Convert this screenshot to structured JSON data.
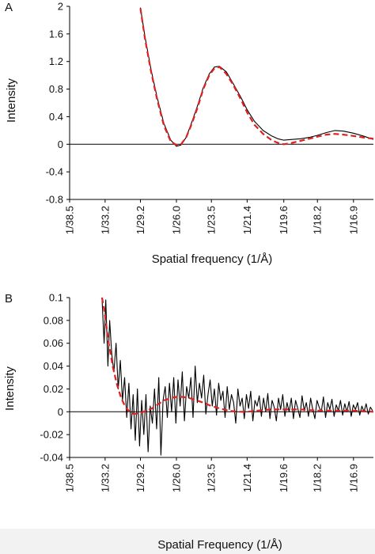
{
  "colors": {
    "measured": "#000000",
    "model": "#e02020",
    "axis": "#000000",
    "footer_bg": "#f2f2f2"
  },
  "chart_data": [
    {
      "panel": "A",
      "type": "line",
      "xlabel": "Spatial frequency (1/Å)",
      "ylabel": "Intensity",
      "x_tick_labels": [
        "1/38.5",
        "1/33.2",
        "1/29.2",
        "1/26.0",
        "1/23.5",
        "1/21.4",
        "1/19.6",
        "1/18.2",
        "1/16.9"
      ],
      "x_tick_values": [
        0.02597,
        0.03012,
        0.03425,
        0.03846,
        0.04255,
        0.04673,
        0.05102,
        0.05495,
        0.05917
      ],
      "xlim": [
        0.02597,
        0.0615
      ],
      "y_tick_labels": [
        "2",
        "1.6",
        "1.2",
        "0.8",
        "0.4",
        "0",
        "-0.4",
        "-0.8"
      ],
      "ylim": [
        -0.8,
        2
      ],
      "zero_line": true,
      "grid": false,
      "legend": "none",
      "series": [
        {
          "style": "solid-black",
          "x": [
            0.03425,
            0.0348,
            0.0355,
            0.0362,
            0.037,
            0.0378,
            0.03846,
            0.039,
            0.0396,
            0.0402,
            0.0409,
            0.0416,
            0.0423,
            0.0429,
            0.0435,
            0.0443,
            0.0451,
            0.046,
            0.04673,
            0.0476,
            0.0486,
            0.0496,
            0.0503,
            0.05102,
            0.052,
            0.053,
            0.054,
            0.05495,
            0.056,
            0.057,
            0.058,
            0.05917,
            0.0603,
            0.0615
          ],
          "y": [
            1.98,
            1.55,
            1.08,
            0.68,
            0.3,
            0.06,
            -0.03,
            -0.01,
            0.1,
            0.3,
            0.55,
            0.82,
            1.02,
            1.12,
            1.13,
            1.05,
            0.88,
            0.68,
            0.5,
            0.33,
            0.2,
            0.12,
            0.08,
            0.06,
            0.07,
            0.08,
            0.1,
            0.13,
            0.17,
            0.2,
            0.19,
            0.16,
            0.12,
            0.07
          ]
        },
        {
          "style": "dashed-red",
          "x": [
            0.03425,
            0.0348,
            0.0355,
            0.0362,
            0.037,
            0.0378,
            0.03846,
            0.039,
            0.0396,
            0.0402,
            0.0409,
            0.0416,
            0.0423,
            0.0429,
            0.0435,
            0.0443,
            0.0451,
            0.046,
            0.04673,
            0.0476,
            0.0486,
            0.0496,
            0.0503,
            0.05102,
            0.052,
            0.053,
            0.054,
            0.05495,
            0.056,
            0.057,
            0.058,
            0.05917,
            0.0603,
            0.0615
          ],
          "y": [
            1.97,
            1.52,
            1.05,
            0.65,
            0.27,
            0.04,
            -0.01,
            0.0,
            0.1,
            0.28,
            0.52,
            0.8,
            1.0,
            1.1,
            1.12,
            1.02,
            0.86,
            0.65,
            0.46,
            0.28,
            0.15,
            0.06,
            0.02,
            0.0,
            0.02,
            0.05,
            0.08,
            0.11,
            0.14,
            0.15,
            0.14,
            0.12,
            0.1,
            0.08
          ]
        }
      ]
    },
    {
      "panel": "B",
      "type": "line",
      "xlabel": "Spatial Frequency (1/Å)",
      "ylabel": "Intensity",
      "x_tick_labels": [
        "1/38.5",
        "1/33.2",
        "1/29.2",
        "1/26.0",
        "1/23.5",
        "1/21.4",
        "1/19.6",
        "1/18.2",
        "1/16.9"
      ],
      "x_tick_values": [
        0.02597,
        0.03012,
        0.03425,
        0.03846,
        0.04255,
        0.04673,
        0.05102,
        0.05495,
        0.05917
      ],
      "xlim": [
        0.02597,
        0.0615
      ],
      "y_tick_labels": [
        "0.1",
        "0.08",
        "0.06",
        "0.04",
        "0.02",
        "0",
        "-0.02",
        "-0.04"
      ],
      "ylim": [
        -0.04,
        0.1
      ],
      "zero_line": true,
      "grid": false,
      "legend": "none",
      "series": [
        {
          "style": "solid-black",
          "x": [
            0.02975,
            0.03,
            0.0302,
            0.03045,
            0.03065,
            0.0309,
            0.03115,
            0.0314,
            0.03165,
            0.0319,
            0.03215,
            0.0324,
            0.03265,
            0.0329,
            0.03315,
            0.0334,
            0.03365,
            0.0339,
            0.03415,
            0.0344,
            0.03465,
            0.0349,
            0.03515,
            0.0354,
            0.03565,
            0.0359,
            0.03615,
            0.0364,
            0.03665,
            0.0369,
            0.03715,
            0.0374,
            0.03765,
            0.0379,
            0.03815,
            0.0384,
            0.03865,
            0.0389,
            0.03915,
            0.0394,
            0.03965,
            0.0399,
            0.04015,
            0.0404,
            0.04065,
            0.0409,
            0.04115,
            0.0414,
            0.04165,
            0.0419,
            0.04215,
            0.0424,
            0.04265,
            0.0429,
            0.04315,
            0.0434,
            0.04365,
            0.0439,
            0.04415,
            0.0444,
            0.04465,
            0.0449,
            0.04515,
            0.0454,
            0.04565,
            0.0459,
            0.04615,
            0.0464,
            0.04665,
            0.0469,
            0.04715,
            0.0474,
            0.04765,
            0.0479,
            0.04815,
            0.0484,
            0.04865,
            0.0489,
            0.04915,
            0.0494,
            0.04965,
            0.0499,
            0.05015,
            0.0504,
            0.05065,
            0.0509,
            0.05115,
            0.0514,
            0.05165,
            0.0519,
            0.05215,
            0.0524,
            0.05265,
            0.0529,
            0.05315,
            0.0534,
            0.05365,
            0.0539,
            0.05415,
            0.0544,
            0.05465,
            0.0549,
            0.05515,
            0.0554,
            0.05565,
            0.0559,
            0.05615,
            0.0564,
            0.05665,
            0.0569,
            0.05715,
            0.0574,
            0.05765,
            0.0579,
            0.05815,
            0.0584,
            0.05865,
            0.0589,
            0.05915,
            0.0594,
            0.05965,
            0.0599,
            0.06015,
            0.0604,
            0.06065,
            0.0609,
            0.06115,
            0.0614
          ],
          "y": [
            0.1,
            0.06,
            0.098,
            0.04,
            0.08,
            0.05,
            0.035,
            0.06,
            0.02,
            0.045,
            0.01,
            0.03,
            -0.005,
            0.025,
            -0.015,
            0.015,
            -0.025,
            0.02,
            -0.03,
            0.01,
            -0.02,
            0.015,
            -0.035,
            0.005,
            -0.01,
            0.02,
            -0.015,
            0.03,
            -0.038,
            0.01,
            0.022,
            -0.005,
            0.025,
            0.0,
            0.03,
            -0.01,
            0.028,
            0.005,
            0.035,
            -0.008,
            0.022,
            0.012,
            0.03,
            -0.005,
            0.04,
            0.008,
            0.025,
            0.012,
            0.032,
            -0.002,
            0.015,
            0.028,
            0.005,
            0.02,
            -0.003,
            0.025,
            0.01,
            0.018,
            -0.005,
            0.022,
            0.002,
            0.015,
            0.008,
            -0.01,
            0.02,
            0.005,
            0.012,
            -0.006,
            0.015,
            0.003,
            0.018,
            -0.008,
            0.01,
            0.005,
            0.014,
            -0.004,
            0.012,
            0.0,
            0.016,
            -0.006,
            0.01,
            0.004,
            -0.008,
            0.012,
            0.002,
            0.015,
            -0.004,
            0.008,
            0.0,
            0.012,
            -0.006,
            0.01,
            0.003,
            -0.005,
            0.014,
            0.001,
            0.008,
            -0.004,
            0.012,
            0.002,
            -0.006,
            0.01,
            0.004,
            0.0,
            0.013,
            -0.005,
            0.008,
            0.002,
            0.011,
            -0.004,
            0.006,
            0.001,
            0.01,
            -0.003,
            0.007,
            0.0,
            0.009,
            -0.004,
            0.006,
            0.002,
            0.008,
            -0.003,
            0.005,
            0.0,
            0.007,
            -0.002,
            0.004,
            0.001
          ]
        },
        {
          "style": "dashed-red",
          "x": [
            0.02975,
            0.03,
            0.0305,
            0.031,
            0.0315,
            0.032,
            0.0325,
            0.033,
            0.0335,
            0.03425,
            0.035,
            0.0356,
            0.0362,
            0.037,
            0.0378,
            0.03846,
            0.0392,
            0.04,
            0.0408,
            0.0416,
            0.04255,
            0.0435,
            0.0445,
            0.0456,
            0.04673,
            0.048,
            0.0495,
            0.05102,
            0.053,
            0.05495,
            0.057,
            0.05917,
            0.0615
          ],
          "y": [
            0.1,
            0.09,
            0.062,
            0.04,
            0.024,
            0.012,
            0.004,
            0.0,
            -0.002,
            -0.001,
            0.001,
            0.003,
            0.006,
            0.01,
            0.012,
            0.013,
            0.013,
            0.012,
            0.01,
            0.008,
            0.005,
            0.003,
            0.001,
            0.0,
            0.0,
            0.001,
            0.002,
            0.002,
            0.002,
            0.001,
            0.001,
            0.001,
            0.0
          ]
        }
      ]
    }
  ]
}
